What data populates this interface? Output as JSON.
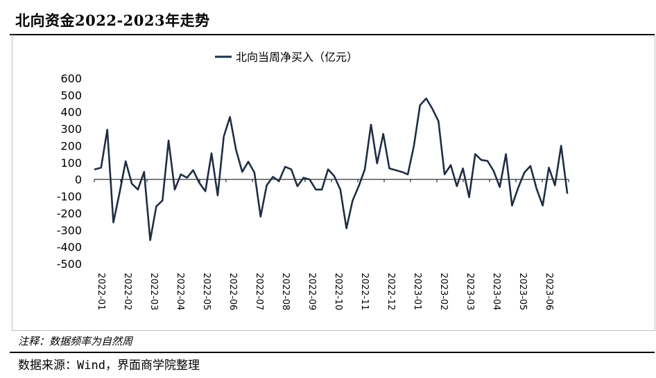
{
  "header": {
    "title": "北向资金2022-2023年走势"
  },
  "footer": {
    "note": "注释：数据频率为自然周",
    "source": "数据来源：Wind，界面商学院整理"
  },
  "colors": {
    "line": "#1f2d44",
    "axis": "#000000"
  },
  "chart_data": {
    "type": "line",
    "title": "北向资金2022-2023年走势",
    "xlabel": "",
    "ylabel": "",
    "ylim": [
      -500,
      600
    ],
    "grid": false,
    "legend_position": "top-center",
    "yticks": [
      600,
      500,
      400,
      300,
      200,
      100,
      0,
      -100,
      -200,
      -300,
      -400,
      -500
    ],
    "x_tick_labels": [
      "2022-01",
      "2022-02",
      "2022-03",
      "2022-04",
      "2022-05",
      "2022-06",
      "2022-07",
      "2022-08",
      "2022-09",
      "2022-10",
      "2022-11",
      "2022-12",
      "2023-01",
      "2023-02",
      "2023-03",
      "2023-04",
      "2023-05",
      "2023-06"
    ],
    "series": [
      {
        "name": "北向当周净买入（亿元）",
        "values": [
          60,
          70,
          295,
          -255,
          -80,
          108,
          -25,
          -60,
          45,
          -360,
          -160,
          -125,
          230,
          -60,
          30,
          10,
          55,
          -20,
          -70,
          155,
          -95,
          255,
          370,
          175,
          45,
          105,
          40,
          -220,
          -35,
          15,
          -10,
          75,
          60,
          -40,
          10,
          0,
          -60,
          -60,
          60,
          20,
          -60,
          -290,
          -125,
          -40,
          60,
          325,
          95,
          270,
          65,
          55,
          45,
          30,
          200,
          440,
          480,
          420,
          345,
          30,
          85,
          -40,
          65,
          -105,
          150,
          115,
          110,
          50,
          -45,
          150,
          -155,
          -50,
          40,
          80,
          -55,
          -155,
          70,
          -35,
          200,
          -80
        ]
      }
    ]
  }
}
